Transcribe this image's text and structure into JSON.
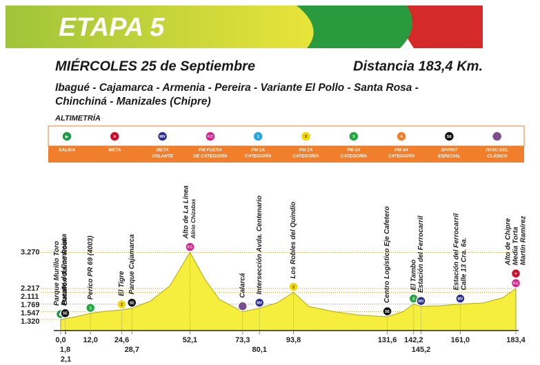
{
  "header": {
    "stage": "ETAPA 5",
    "date": "MIÉRCOLES 25 de Septiembre",
    "distance": "Distancia 183,4 Km.",
    "route": [
      "Ibagué - Cajamarca - Armenia - Pereira - Variante El Pollo - Santa Rosa -",
      "Chinchiná - Manizales (Chipre)"
    ],
    "section": "ALTIMETRÍA"
  },
  "legend": [
    {
      "label": [
        "SALIDA"
      ],
      "color": "#1f9a48",
      "symbol": "▶"
    },
    {
      "label": [
        "META"
      ],
      "color": "#c8102e",
      "symbol": "✕"
    },
    {
      "label": [
        "META",
        "VOLANTE"
      ],
      "color": "#2b2f8f",
      "symbol": "MV"
    },
    {
      "label": [
        "PM FUERA",
        "DE CATEGORÍA"
      ],
      "color": "#d6208c",
      "symbol": "F.C"
    },
    {
      "label": [
        "PM 1A",
        "CATEGORÍA"
      ],
      "color": "#29a8e0",
      "symbol": "1"
    },
    {
      "label": [
        "PM 2A",
        "CATEGORÍA"
      ],
      "color": "#f2d600",
      "symbol": "2"
    },
    {
      "label": [
        "PM 3A",
        "CATEGORÍA"
      ],
      "color": "#27a744",
      "symbol": "3"
    },
    {
      "label": [
        "PM 4A",
        "CATEGORÍA"
      ],
      "color": "#f07e2a",
      "symbol": "4"
    },
    {
      "label": [
        "SPRINT",
        "ESPECIAL"
      ],
      "color": "#111111",
      "symbol": "SE"
    },
    {
      "label": [
        "PASO DEL",
        "CLÁSICO"
      ],
      "color": "#7a4f8c",
      "symbol": null
    }
  ],
  "chart_data": {
    "type": "area",
    "color": "#f6ee3c",
    "x": [
      0,
      6,
      12,
      18,
      24.6,
      28.7,
      36,
      44,
      52.1,
      58,
      64,
      73.3,
      80.1,
      87,
      93.8,
      100,
      110,
      120,
      131.6,
      138,
      142.2,
      145.2,
      153,
      161,
      170,
      178,
      183.4
    ],
    "values": [
      1320,
      1400,
      1500,
      1560,
      1600,
      1650,
      1850,
      2300,
      3270,
      2500,
      1900,
      1547,
      1650,
      1800,
      2111,
      1700,
      1550,
      1450,
      1400,
      1550,
      1769,
      1700,
      1720,
      1769,
      1800,
      1950,
      2217
    ],
    "xlim": [
      0,
      183.4
    ],
    "ylim": [
      1000,
      3500
    ],
    "yticks": [
      {
        "value": 3270,
        "label": "3.270"
      },
      {
        "value": 2217,
        "label": "2.217"
      },
      {
        "value": 2111,
        "label": "2.111"
      },
      {
        "value": 1769,
        "label": "1.769"
      },
      {
        "value": 1547,
        "label": "1.547"
      },
      {
        "value": 1320,
        "label": "1.320"
      }
    ],
    "xticks": [
      {
        "value": 0,
        "label": "0,0"
      },
      {
        "value": 1.8,
        "label": "1,8"
      },
      {
        "value": 2.1,
        "label": "2,1"
      },
      {
        "value": 12,
        "label": "12,0"
      },
      {
        "value": 24.6,
        "label": "24,6"
      },
      {
        "value": 28.7,
        "label": "28,7"
      },
      {
        "value": 52.1,
        "label": "52,1"
      },
      {
        "value": 73.3,
        "label": "73,3"
      },
      {
        "value": 80.1,
        "label": "80,1"
      },
      {
        "value": 93.8,
        "label": "93,8"
      },
      {
        "value": 131.6,
        "label": "131,6"
      },
      {
        "value": 142.2,
        "label": "142,2"
      },
      {
        "value": 145.2,
        "label": "145,2"
      },
      {
        "value": 161,
        "label": "161,0"
      },
      {
        "value": 183.4,
        "label": "183,4"
      }
    ],
    "markers": [
      {
        "tick": 0,
        "icons": [
          0
        ],
        "labels": [
          "Parque Murillo Toro",
          "Puente del Combeima"
        ]
      },
      {
        "tick": 1,
        "icons": [
          8
        ],
        "labels": [
          "Batallón Jaime Rook"
        ]
      },
      {
        "tick": 3,
        "icons": [
          6
        ],
        "labels": [
          "Perico PR 69 (4003)"
        ]
      },
      {
        "tick": 4,
        "icons": [
          5
        ],
        "labels": [
          "El Tigre"
        ]
      },
      {
        "tick": 5,
        "icons": [
          8
        ],
        "labels": [
          "Parque Cajamarca"
        ]
      },
      {
        "tick": 6,
        "icons": [
          3
        ],
        "labels": [
          "Alto de La Línea",
          "Alirio Chizabas"
        ]
      },
      {
        "tick": 7,
        "icons": [
          9
        ],
        "labels": [
          "Calarcá"
        ]
      },
      {
        "tick": 8,
        "icons": [
          2
        ],
        "labels": [
          "Intersección Avda. Centenario"
        ]
      },
      {
        "tick": 9,
        "icons": [
          5
        ],
        "labels": [
          "Los Robles del Quindío"
        ]
      },
      {
        "tick": 10,
        "icons": [
          8
        ],
        "labels": [
          "Centro Logístico Eje Cafetero"
        ]
      },
      {
        "tick": 11,
        "icons": [
          6
        ],
        "labels": [
          "El Tambo"
        ]
      },
      {
        "tick": 12,
        "icons": [
          2
        ],
        "labels": [
          "Estación del Ferrocarril"
        ]
      },
      {
        "tick": 13,
        "icons": [
          2
        ],
        "labels": [
          "Estación del Ferrocarril",
          "Calle 13  Cra. 6a."
        ]
      },
      {
        "tick": 14,
        "icons": [
          3,
          1
        ],
        "labels": [
          "Alto de Chipre",
          "Media Torta",
          "Martín Ramírez"
        ]
      }
    ]
  }
}
